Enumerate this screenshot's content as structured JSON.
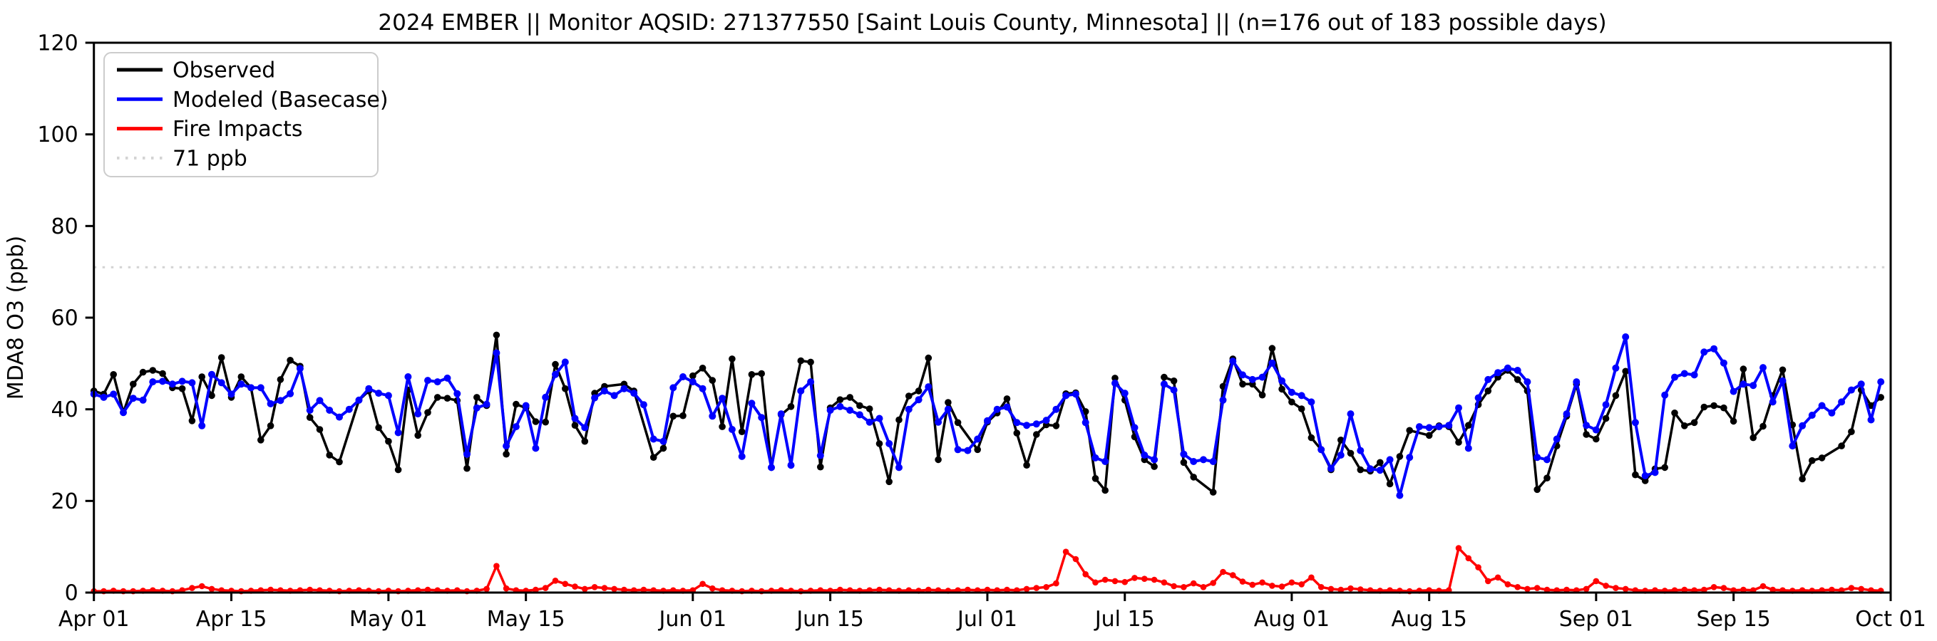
{
  "chart_data": {
    "type": "line",
    "title": "2024 EMBER || Monitor AQSID: 271377550 [Saint Louis County, Minnesota] || (n=176 out of 183 possible days)",
    "xlabel": "",
    "ylabel": "MDA8 O3 (ppb)",
    "ylim": [
      0,
      120
    ],
    "yticks": [
      0,
      20,
      40,
      60,
      80,
      100,
      120
    ],
    "x_range_days": 183,
    "xticks": [
      {
        "label": "Apr 01",
        "day": 0
      },
      {
        "label": "Apr 15",
        "day": 14
      },
      {
        "label": "May 01",
        "day": 30
      },
      {
        "label": "May 15",
        "day": 44
      },
      {
        "label": "Jun 01",
        "day": 61
      },
      {
        "label": "Jun 15",
        "day": 75
      },
      {
        "label": "Jul 01",
        "day": 91
      },
      {
        "label": "Jul 15",
        "day": 105
      },
      {
        "label": "Aug 01",
        "day": 122
      },
      {
        "label": "Aug 15",
        "day": 136
      },
      {
        "label": "Sep 01",
        "day": 153
      },
      {
        "label": "Sep 15",
        "day": 167
      },
      {
        "label": "Oct 01",
        "day": 183
      }
    ],
    "grid": false,
    "legend_position": "upper-left",
    "legend": [
      {
        "label": "Observed",
        "color": "#000000",
        "style": "solid"
      },
      {
        "label": "Modeled (Basecase)",
        "color": "#0000ff",
        "style": "solid"
      },
      {
        "label": "Fire Impacts",
        "color": "#ff0000",
        "style": "solid"
      },
      {
        "label": "71 ppb",
        "color": "#d3d3d3",
        "style": "dotted"
      }
    ],
    "threshold": {
      "value": 71,
      "label": "71 ppb",
      "color": "#d3d3d3",
      "style": "dotted"
    },
    "observed_days_count": 176,
    "possible_days_count": 183,
    "series": [
      {
        "name": "Observed",
        "color": "#000000",
        "marker": "circle",
        "values": [
          44.0,
          43.3,
          47.6,
          39.3,
          45.5,
          48.1,
          48.5,
          47.8,
          44.7,
          44.5,
          37.5,
          47.1,
          43.0,
          51.3,
          42.6,
          47.1,
          44.7,
          33.3,
          36.4,
          46.5,
          50.7,
          49.4,
          38.2,
          35.6,
          30.0,
          28.5,
          null,
          42.0,
          44.0,
          36.0,
          33.0,
          26.8,
          44.2,
          34.3,
          39.3,
          42.6,
          42.4,
          41.9,
          27.1,
          42.6,
          40.8,
          56.2,
          30.2,
          41.1,
          40.3,
          37.3,
          37.2,
          49.8,
          44.5,
          36.5,
          33.0,
          43.5,
          45.0,
          null,
          45.5,
          44.0,
          null,
          29.5,
          31.5,
          38.5,
          38.6,
          47.3,
          49.0,
          46.3,
          36.2,
          51.0,
          35.1,
          47.6,
          47.8,
          27.3,
          38.8,
          40.6,
          50.6,
          50.3,
          27.4,
          40.3,
          42.1,
          42.6,
          40.8,
          40.1,
          32.5,
          24.2,
          37.7,
          42.9,
          44.0,
          51.2,
          29.0,
          41.5,
          37.1,
          null,
          31.2,
          37.2,
          39.2,
          42.3,
          34.8,
          27.8,
          34.5,
          36.6,
          36.4,
          43.4,
          43.6,
          39.5,
          24.9,
          22.3,
          46.8,
          42.0,
          34.0,
          29.0,
          27.5,
          47.0,
          46.2,
          28.4,
          25.2,
          null,
          21.9,
          45.0,
          51.0,
          45.5,
          45.5,
          43.1,
          53.3,
          44.4,
          41.6,
          40.1,
          33.8,
          31.2,
          26.8,
          33.3,
          30.4,
          26.8,
          26.5,
          28.4,
          23.7,
          29.7,
          35.4,
          null,
          34.3,
          36.4,
          36.2,
          32.8,
          36.5,
          41.0,
          44.0,
          47.0,
          48.5,
          46.5,
          44.0,
          22.5,
          25.0,
          32.0,
          38.5,
          45.5,
          34.5,
          33.5,
          38.0,
          43.0,
          48.3,
          25.7,
          24.4,
          27.0,
          27.3,
          39.2,
          36.4,
          37.1,
          40.5,
          40.8,
          40.3,
          37.4,
          48.8,
          33.8,
          36.3,
          43.0,
          48.6,
          36.6,
          24.8,
          28.8,
          29.4,
          null,
          32.0,
          35.1,
          44.2,
          40.8,
          42.6
        ]
      },
      {
        "name": "Modeled (Basecase)",
        "color": "#0000ff",
        "marker": "circle",
        "values": [
          43.3,
          42.6,
          43.3,
          39.3,
          42.4,
          42.0,
          46.0,
          46.1,
          45.5,
          46.1,
          45.8,
          36.4,
          47.6,
          45.8,
          43.3,
          45.5,
          44.7,
          44.7,
          41.2,
          41.9,
          43.4,
          48.9,
          39.8,
          41.9,
          39.8,
          38.3,
          40.0,
          42.0,
          44.5,
          43.5,
          43.0,
          34.9,
          47.1,
          39.0,
          46.3,
          46.0,
          46.8,
          43.4,
          30.2,
          40.3,
          41.1,
          52.3,
          32.0,
          36.2,
          40.8,
          31.5,
          42.6,
          47.6,
          50.3,
          38.0,
          36.0,
          42.5,
          44.0,
          43.0,
          44.5,
          43.5,
          41.0,
          33.5,
          33.0,
          44.7,
          47.1,
          46.0,
          44.5,
          38.5,
          42.4,
          35.6,
          29.7,
          41.3,
          38.2,
          27.3,
          39.0,
          27.8,
          44.0,
          46.0,
          29.9,
          39.8,
          40.6,
          39.8,
          38.8,
          37.2,
          38.0,
          32.5,
          27.3,
          40.0,
          42.1,
          44.9,
          37.2,
          40.0,
          31.2,
          31.0,
          33.5,
          37.5,
          40.0,
          40.5,
          37.1,
          36.5,
          36.8,
          37.6,
          40.0,
          43.0,
          43.3,
          37.1,
          29.4,
          28.6,
          45.7,
          43.5,
          36.0,
          30.0,
          29.0,
          45.5,
          44.2,
          30.2,
          28.6,
          29.0,
          28.6,
          42.0,
          50.5,
          47.5,
          46.5,
          47.0,
          50.1,
          46.2,
          43.7,
          43.0,
          41.6,
          31.2,
          27.1,
          30.0,
          39.0,
          31.0,
          27.0,
          26.7,
          29.0,
          21.2,
          29.5,
          36.2,
          36.0,
          36.2,
          36.5,
          40.3,
          31.5,
          42.5,
          46.5,
          48.0,
          49.0,
          48.5,
          46.0,
          29.5,
          29.0,
          33.5,
          39.0,
          46.0,
          36.5,
          35.5,
          41.0,
          49.0,
          55.8,
          37.1,
          25.5,
          26.2,
          43.1,
          47.0,
          47.8,
          47.5,
          52.5,
          53.2,
          50.1,
          43.9,
          45.5,
          45.2,
          49.1,
          41.6,
          46.2,
          32.0,
          36.4,
          38.7,
          40.8,
          39.2,
          41.6,
          44.2,
          45.5,
          37.7,
          46.0
        ]
      },
      {
        "name": "Fire Impacts",
        "color": "#ff0000",
        "marker": "circle",
        "values": [
          0.3,
          0.3,
          0.4,
          0.3,
          0.3,
          0.4,
          0.5,
          0.4,
          0.3,
          0.5,
          1.0,
          1.4,
          0.8,
          0.5,
          0.4,
          0.3,
          0.4,
          0.5,
          0.6,
          0.5,
          0.4,
          0.5,
          0.6,
          0.5,
          0.4,
          0.3,
          0.4,
          0.5,
          0.4,
          0.3,
          0.4,
          0.3,
          0.4,
          0.5,
          0.6,
          0.5,
          0.4,
          0.5,
          0.3,
          0.4,
          0.8,
          5.8,
          0.9,
          0.5,
          0.4,
          0.6,
          1.0,
          2.6,
          1.9,
          1.3,
          0.8,
          1.2,
          1.0,
          0.8,
          0.6,
          0.5,
          0.6,
          0.5,
          0.4,
          0.5,
          0.4,
          0.5,
          1.9,
          0.9,
          0.5,
          0.4,
          0.3,
          0.4,
          0.3,
          0.4,
          0.5,
          0.4,
          0.3,
          0.4,
          0.5,
          0.4,
          0.6,
          0.5,
          0.4,
          0.5,
          0.6,
          0.5,
          0.4,
          0.5,
          0.4,
          0.6,
          0.5,
          0.4,
          0.5,
          0.6,
          0.5,
          0.6,
          0.5,
          0.6,
          0.5,
          0.8,
          1.0,
          1.2,
          2.0,
          8.9,
          7.3,
          4.0,
          2.2,
          2.8,
          2.5,
          2.3,
          3.2,
          3.0,
          2.8,
          2.2,
          1.4,
          1.2,
          2.0,
          1.2,
          2.1,
          4.5,
          3.8,
          2.4,
          1.7,
          2.2,
          1.5,
          1.3,
          2.2,
          1.8,
          3.3,
          1.2,
          0.8,
          0.6,
          0.9,
          0.7,
          0.5,
          0.4,
          0.5,
          0.4,
          0.3,
          0.4,
          0.5,
          0.4,
          0.5,
          9.7,
          7.5,
          5.5,
          2.5,
          3.3,
          1.8,
          1.2,
          0.8,
          1.0,
          0.6,
          0.5,
          0.6,
          0.5,
          0.8,
          2.5,
          1.5,
          1.0,
          0.8,
          0.5,
          0.4,
          0.5,
          0.4,
          0.5,
          0.6,
          0.5,
          0.6,
          1.2,
          1.0,
          0.5,
          0.6,
          0.5,
          1.4,
          0.6,
          0.5,
          0.4,
          0.5,
          0.4,
          0.5,
          0.6,
          0.5,
          1.0,
          0.8,
          0.5,
          0.4
        ]
      }
    ]
  },
  "colors": {
    "background": "#ffffff",
    "axes": "#000000",
    "observed": "#000000",
    "modeled": "#0000ff",
    "fire": "#ff0000",
    "threshold": "#d3d3d3",
    "legend_border": "#cccccc"
  }
}
